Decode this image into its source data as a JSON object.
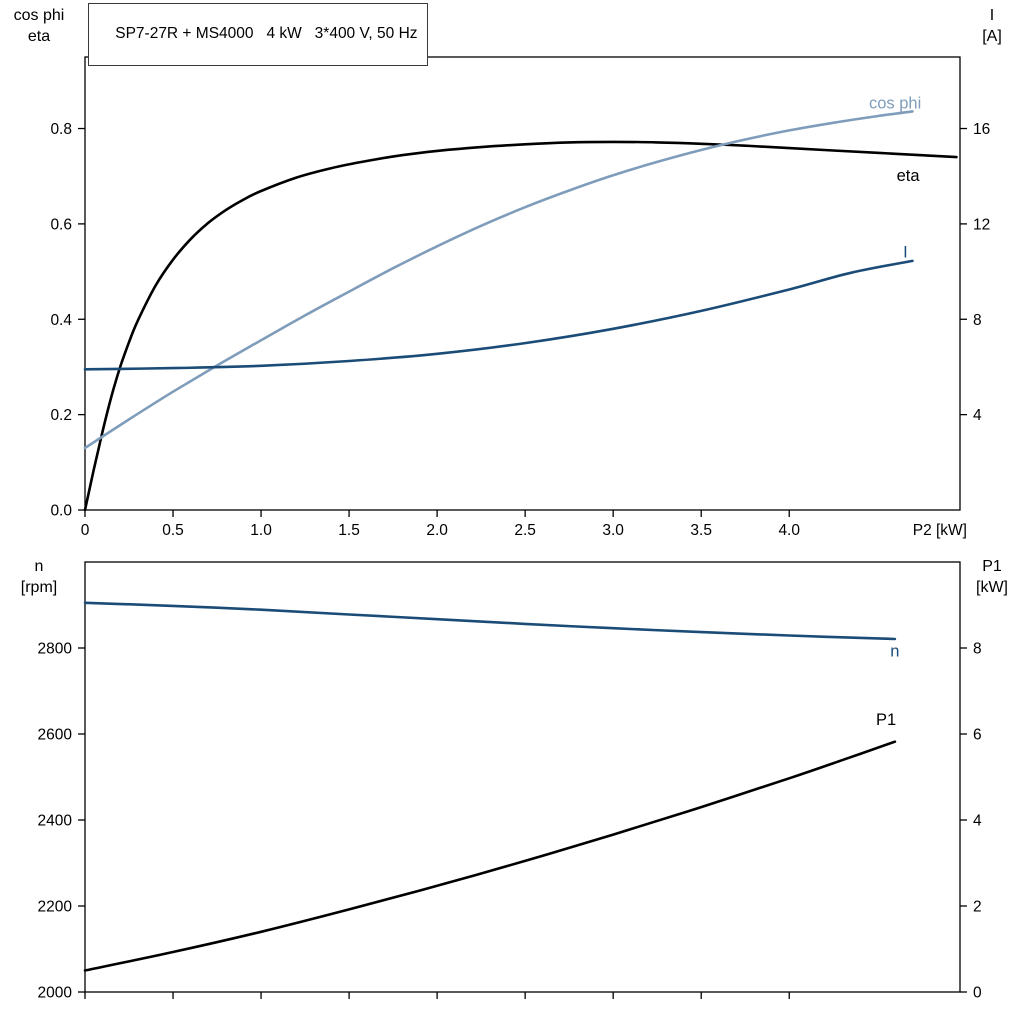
{
  "title": "SP7-27R + MS4000   4 kW   3*400 V, 50 Hz",
  "chart_data": [
    {
      "name": "electrical",
      "type": "line",
      "title": "SP7-27R + MS4000   4 kW   3*400 V, 50 Hz",
      "xlabel": "P2 [kW]",
      "xlim": [
        0,
        4.97
      ],
      "x_tick_labels_visible": true,
      "x_ticks": [
        {
          "v": 0,
          "t": "0"
        },
        {
          "v": 0.5,
          "t": "0.5"
        },
        {
          "v": 1,
          "t": "1.0"
        },
        {
          "v": 1.5,
          "t": "1.5"
        },
        {
          "v": 2,
          "t": "2.0"
        },
        {
          "v": 2.5,
          "t": "2.5"
        },
        {
          "v": 3,
          "t": "3.0"
        },
        {
          "v": 3.5,
          "t": "3.5"
        },
        {
          "v": 4,
          "t": "4.0"
        }
      ],
      "left_axis": {
        "header": [
          "cos phi",
          "eta"
        ],
        "lim": [
          0,
          0.95
        ],
        "ticks": [
          {
            "v": 0,
            "t": "0.0"
          },
          {
            "v": 0.2,
            "t": "0.2"
          },
          {
            "v": 0.4,
            "t": "0.4"
          },
          {
            "v": 0.6,
            "t": "0.6"
          },
          {
            "v": 0.8,
            "t": "0.8"
          }
        ]
      },
      "right_axis": {
        "header": [
          "I",
          "[A]"
        ],
        "lim": [
          0,
          19
        ],
        "ticks": [
          {
            "v": 4,
            "t": "4"
          },
          {
            "v": 8,
            "t": "8"
          },
          {
            "v": 12,
            "t": "12"
          },
          {
            "v": 16,
            "t": "16"
          }
        ]
      },
      "series": [
        {
          "name": "eta",
          "axis": "left",
          "color": "#000000",
          "label": {
            "text": "eta",
            "x": 4.74,
            "y": 0.7,
            "anchor": "end"
          },
          "points": [
            [
              0,
              0
            ],
            [
              0.05,
              0.085
            ],
            [
              0.1,
              0.165
            ],
            [
              0.15,
              0.238
            ],
            [
              0.2,
              0.3
            ],
            [
              0.25,
              0.352
            ],
            [
              0.3,
              0.397
            ],
            [
              0.4,
              0.47
            ],
            [
              0.5,
              0.525
            ],
            [
              0.6,
              0.568
            ],
            [
              0.7,
              0.602
            ],
            [
              0.8,
              0.629
            ],
            [
              0.9,
              0.651
            ],
            [
              1,
              0.669
            ],
            [
              1.2,
              0.697
            ],
            [
              1.4,
              0.717
            ],
            [
              1.6,
              0.732
            ],
            [
              1.8,
              0.744
            ],
            [
              2,
              0.753
            ],
            [
              2.25,
              0.761
            ],
            [
              2.5,
              0.767
            ],
            [
              2.75,
              0.771
            ],
            [
              3,
              0.772
            ],
            [
              3.25,
              0.771
            ],
            [
              3.5,
              0.768
            ],
            [
              3.75,
              0.764
            ],
            [
              4,
              0.759
            ],
            [
              4.25,
              0.754
            ],
            [
              4.5,
              0.749
            ],
            [
              4.75,
              0.744
            ],
            [
              4.95,
              0.74
            ]
          ]
        },
        {
          "name": "cos-phi",
          "axis": "left",
          "color": "#7f9dbb",
          "label": {
            "text": "cos phi",
            "x": 4.75,
            "y": 0.852,
            "anchor": "end"
          },
          "points": [
            [
              0,
              0.13
            ],
            [
              0.25,
              0.19
            ],
            [
              0.5,
              0.248
            ],
            [
              0.75,
              0.303
            ],
            [
              1,
              0.356
            ],
            [
              1.25,
              0.408
            ],
            [
              1.5,
              0.458
            ],
            [
              1.75,
              0.507
            ],
            [
              2,
              0.553
            ],
            [
              2.25,
              0.596
            ],
            [
              2.5,
              0.635
            ],
            [
              2.75,
              0.67
            ],
            [
              3,
              0.702
            ],
            [
              3.25,
              0.73
            ],
            [
              3.5,
              0.755
            ],
            [
              3.75,
              0.777
            ],
            [
              4,
              0.796
            ],
            [
              4.25,
              0.812
            ],
            [
              4.5,
              0.826
            ],
            [
              4.7,
              0.836
            ]
          ]
        },
        {
          "name": "current",
          "axis": "right",
          "color": "#1a4c77",
          "label": {
            "text": "I",
            "x": 4.66,
            "y": 10.8,
            "anchor": "middle"
          },
          "points": [
            [
              0,
              5.9
            ],
            [
              0.5,
              5.95
            ],
            [
              1,
              6.05
            ],
            [
              1.5,
              6.25
            ],
            [
              2,
              6.55
            ],
            [
              2.5,
              7.0
            ],
            [
              3,
              7.6
            ],
            [
              3.5,
              8.35
            ],
            [
              4,
              9.25
            ],
            [
              4.35,
              9.95
            ],
            [
              4.7,
              10.45
            ]
          ]
        }
      ]
    },
    {
      "name": "speed-power",
      "type": "line",
      "title": "",
      "xlabel": "",
      "xlim": [
        0,
        4.97
      ],
      "x_tick_labels_visible": false,
      "x_ticks": [
        {
          "v": 0,
          "t": ""
        },
        {
          "v": 0.5,
          "t": ""
        },
        {
          "v": 1,
          "t": ""
        },
        {
          "v": 1.5,
          "t": ""
        },
        {
          "v": 2,
          "t": ""
        },
        {
          "v": 2.5,
          "t": ""
        },
        {
          "v": 3,
          "t": ""
        },
        {
          "v": 3.5,
          "t": ""
        },
        {
          "v": 4,
          "t": ""
        }
      ],
      "left_axis": {
        "header": [
          "n",
          "[rpm]"
        ],
        "lim": [
          2000,
          3000
        ],
        "ticks": [
          {
            "v": 2000,
            "t": "2000"
          },
          {
            "v": 2200,
            "t": "2200"
          },
          {
            "v": 2400,
            "t": "2400"
          },
          {
            "v": 2600,
            "t": "2600"
          },
          {
            "v": 2800,
            "t": "2800"
          }
        ]
      },
      "right_axis": {
        "header": [
          "P1",
          "[kW]"
        ],
        "lim": [
          0,
          10
        ],
        "ticks": [
          {
            "v": 0,
            "t": "0"
          },
          {
            "v": 2,
            "t": "2"
          },
          {
            "v": 4,
            "t": "4"
          },
          {
            "v": 6,
            "t": "6"
          },
          {
            "v": 8,
            "t": "8"
          }
        ]
      },
      "series": [
        {
          "name": "speed",
          "axis": "left",
          "color": "#1a4c77",
          "label": {
            "text": "n",
            "x": 4.6,
            "y": 2792,
            "anchor": "middle"
          },
          "points": [
            [
              0,
              2905
            ],
            [
              0.5,
              2898
            ],
            [
              1,
              2889
            ],
            [
              1.5,
              2878
            ],
            [
              2,
              2867
            ],
            [
              2.5,
              2856
            ],
            [
              3,
              2846
            ],
            [
              3.5,
              2837
            ],
            [
              4,
              2829
            ],
            [
              4.3,
              2825
            ],
            [
              4.6,
              2821
            ]
          ]
        },
        {
          "name": "p1",
          "axis": "right",
          "color": "#000000",
          "label": {
            "text": "P1",
            "x": 4.55,
            "y": 6.32,
            "anchor": "middle"
          },
          "points": [
            [
              0,
              0.5
            ],
            [
              0.5,
              0.93
            ],
            [
              1,
              1.4
            ],
            [
              1.5,
              1.92
            ],
            [
              2,
              2.47
            ],
            [
              2.5,
              3.05
            ],
            [
              3,
              3.66
            ],
            [
              3.5,
              4.3
            ],
            [
              4,
              4.97
            ],
            [
              4.3,
              5.39
            ],
            [
              4.6,
              5.82
            ]
          ]
        }
      ]
    }
  ]
}
